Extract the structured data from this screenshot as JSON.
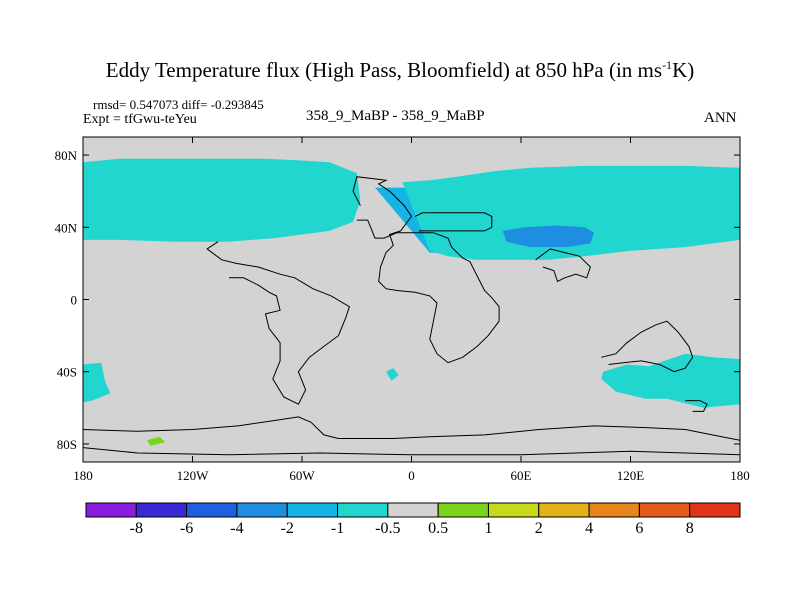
{
  "title": {
    "main": "Eddy Temperature flux (High Pass, Bloomfield) at 850 hPa (in ms",
    "sup": "-1",
    "tail": "K)"
  },
  "stats": "rmsd= 0.547073 diff= -0.293845",
  "expt": "Expt = tfGwu-teYeu",
  "case": "358_9_MaBP - 358_9_MaBP",
  "period": "ANN",
  "chart_data": {
    "type": "heatmap",
    "xlabel": "",
    "ylabel": "",
    "xlim": [
      -180,
      180
    ],
    "ylim": [
      -90,
      90
    ],
    "x_ticks": [
      {
        "value": -180,
        "label": "180"
      },
      {
        "value": -120,
        "label": "120W"
      },
      {
        "value": -60,
        "label": "60W"
      },
      {
        "value": 0,
        "label": "0"
      },
      {
        "value": 60,
        "label": "60E"
      },
      {
        "value": 120,
        "label": "120E"
      },
      {
        "value": 180,
        "label": "180"
      }
    ],
    "y_ticks": [
      {
        "value": 80,
        "label": "80N"
      },
      {
        "value": 40,
        "label": "40N"
      },
      {
        "value": 0,
        "label": "0"
      },
      {
        "value": -40,
        "label": "40S"
      },
      {
        "value": -80,
        "label": "80S"
      }
    ],
    "background_level": "-0.5 to 0.5",
    "background_color": "#d3d3d3",
    "colorbar": {
      "levels": [
        "-8",
        "-6",
        "-4",
        "-2",
        "-1",
        "-0.5",
        "0.5",
        "1",
        "2",
        "4",
        "6",
        "8"
      ],
      "colors": [
        "#8a1ce0",
        "#3a2ad6",
        "#1f60e0",
        "#1e8fe0",
        "#14b4e6",
        "#22d6d0",
        "#d3d3d3",
        "#7ad41a",
        "#c8d81a",
        "#e2b318",
        "#e8851a",
        "#e35a1a",
        "#e0341a"
      ]
    },
    "regions": [
      {
        "level": "-2 to -1",
        "color": "#14b4e6",
        "points": [
          [
            -180,
            69
          ],
          [
            -165,
            70
          ],
          [
            -150,
            71
          ],
          [
            -130,
            72
          ],
          [
            -110,
            72
          ],
          [
            -90,
            72
          ],
          [
            -70,
            71
          ],
          [
            -55,
            68
          ],
          [
            -45,
            62
          ],
          [
            -40,
            50
          ],
          [
            -50,
            42
          ],
          [
            -75,
            37
          ],
          [
            -100,
            36
          ],
          [
            -130,
            36
          ],
          [
            -160,
            37
          ],
          [
            -180,
            37
          ]
        ]
      },
      {
        "level": "-1 to -0.5",
        "color": "#22d6d0",
        "points": [
          [
            -180,
            76
          ],
          [
            -160,
            78
          ],
          [
            -120,
            78
          ],
          [
            -80,
            78
          ],
          [
            -60,
            77
          ],
          [
            -45,
            76
          ],
          [
            -30,
            70
          ],
          [
            -28,
            55
          ],
          [
            -32,
            43
          ],
          [
            -45,
            38
          ],
          [
            -75,
            34
          ],
          [
            -100,
            32
          ],
          [
            -130,
            32
          ],
          [
            -160,
            33
          ],
          [
            -180,
            33
          ]
        ]
      },
      {
        "level": "-2 to -1",
        "color": "#14b4e6",
        "points": [
          [
            -20,
            62
          ],
          [
            0,
            62
          ],
          [
            20,
            63
          ],
          [
            40,
            66
          ],
          [
            65,
            69
          ],
          [
            85,
            72
          ],
          [
            100,
            72
          ],
          [
            125,
            72
          ],
          [
            150,
            72
          ],
          [
            165,
            70
          ],
          [
            180,
            68
          ],
          [
            180,
            38
          ],
          [
            160,
            34
          ],
          [
            130,
            30
          ],
          [
            100,
            29
          ],
          [
            80,
            27
          ],
          [
            50,
            25
          ],
          [
            10,
            26
          ]
        ]
      },
      {
        "level": "-1 to -0.5",
        "color": "#22d6d0",
        "points": [
          [
            -5,
            65
          ],
          [
            10,
            66
          ],
          [
            25,
            68
          ],
          [
            45,
            71
          ],
          [
            65,
            73
          ],
          [
            95,
            74
          ],
          [
            125,
            74
          ],
          [
            150,
            74
          ],
          [
            180,
            73
          ],
          [
            180,
            33
          ],
          [
            150,
            29
          ],
          [
            120,
            27
          ],
          [
            95,
            24
          ],
          [
            75,
            22
          ],
          [
            55,
            22
          ],
          [
            35,
            22
          ],
          [
            20,
            24
          ],
          [
            10,
            27
          ]
        ]
      },
      {
        "level": "-4 to -2",
        "color": "#1e8fe0",
        "points": [
          [
            50,
            38
          ],
          [
            62,
            40
          ],
          [
            80,
            41
          ],
          [
            95,
            40
          ],
          [
            100,
            37
          ],
          [
            98,
            31
          ],
          [
            85,
            29
          ],
          [
            65,
            29
          ],
          [
            52,
            32
          ]
        ]
      },
      {
        "level": "-1 to -0.5",
        "color": "#22d6d0",
        "points": [
          [
            -180,
            -36
          ],
          [
            -170,
            -35
          ],
          [
            -168,
            -45
          ],
          [
            -165,
            -52
          ],
          [
            -175,
            -56
          ],
          [
            -180,
            -57
          ]
        ]
      },
      {
        "level": "-1 to -0.5",
        "color": "#22d6d0",
        "points": [
          [
            105,
            -40
          ],
          [
            118,
            -36
          ],
          [
            130,
            -37
          ],
          [
            150,
            -30
          ],
          [
            165,
            -32
          ],
          [
            180,
            -33
          ],
          [
            180,
            -58
          ],
          [
            160,
            -60
          ],
          [
            140,
            -55
          ],
          [
            128,
            -55
          ],
          [
            112,
            -51
          ],
          [
            104,
            -44
          ]
        ]
      },
      {
        "level": "-1 to -0.5",
        "color": "#22d6d0",
        "points": [
          [
            -14,
            -40
          ],
          [
            -10,
            -38
          ],
          [
            -7,
            -42
          ],
          [
            -11,
            -45
          ]
        ]
      },
      {
        "level": "0.5 to 1",
        "color": "#7ad41a",
        "points": [
          [
            -145,
            -78
          ],
          [
            -138,
            -76
          ],
          [
            -135,
            -79
          ],
          [
            -143,
            -81
          ]
        ]
      }
    ],
    "coastlines": [
      [
        [
          -30,
          44
        ],
        [
          -24,
          44
        ],
        [
          -20,
          34
        ],
        [
          -15,
          34
        ],
        [
          -8,
          37
        ],
        [
          12,
          37
        ],
        [
          20,
          34
        ],
        [
          22,
          29
        ],
        [
          28,
          23
        ],
        [
          32,
          21
        ],
        [
          36,
          13
        ],
        [
          40,
          5
        ],
        [
          44,
          1
        ],
        [
          48,
          -4
        ],
        [
          48,
          -12
        ],
        [
          42,
          -20
        ],
        [
          36,
          -26
        ],
        [
          28,
          -32
        ],
        [
          20,
          -35
        ],
        [
          14,
          -30
        ],
        [
          10,
          -22
        ],
        [
          12,
          -12
        ],
        [
          14,
          -2
        ],
        [
          10,
          2
        ],
        [
          2,
          4
        ],
        [
          -8,
          5
        ],
        [
          -14,
          6
        ],
        [
          -18,
          10
        ],
        [
          -17,
          18
        ],
        [
          -14,
          26
        ],
        [
          -10,
          30
        ],
        [
          -12,
          36
        ],
        [
          -6,
          38
        ],
        [
          0,
          46
        ],
        [
          -4,
          52
        ],
        [
          -8,
          56
        ],
        [
          -12,
          60
        ],
        [
          -18,
          64
        ],
        [
          -14,
          66
        ],
        [
          -30,
          68
        ],
        [
          -32,
          60
        ],
        [
          -28,
          52
        ]
      ],
      [
        [
          -100,
          12
        ],
        [
          -92,
          12
        ],
        [
          -84,
          8
        ],
        [
          -78,
          4
        ],
        [
          -74,
          2
        ],
        [
          -72,
          -6
        ],
        [
          -80,
          -8
        ],
        [
          -78,
          -16
        ],
        [
          -72,
          -24
        ],
        [
          -72,
          -34
        ],
        [
          -76,
          -44
        ],
        [
          -70,
          -54
        ],
        [
          -62,
          -58
        ],
        [
          -58,
          -50
        ],
        [
          -62,
          -40
        ],
        [
          -56,
          -32
        ],
        [
          -48,
          -26
        ],
        [
          -40,
          -20
        ],
        [
          -36,
          -10
        ],
        [
          -34,
          -4
        ],
        [
          -44,
          2
        ],
        [
          -54,
          6
        ],
        [
          -64,
          12
        ],
        [
          -72,
          14
        ],
        [
          -84,
          18
        ],
        [
          -96,
          20
        ],
        [
          -104,
          22
        ],
        [
          -112,
          28
        ],
        [
          -106,
          32
        ]
      ],
      [
        [
          4,
          38
        ],
        [
          10,
          38
        ],
        [
          16,
          38
        ],
        [
          22,
          38
        ],
        [
          28,
          38
        ],
        [
          34,
          38
        ],
        [
          40,
          38
        ],
        [
          44,
          40
        ],
        [
          44,
          46
        ],
        [
          40,
          48
        ],
        [
          34,
          48
        ],
        [
          28,
          48
        ],
        [
          20,
          48
        ],
        [
          12,
          48
        ],
        [
          6,
          48
        ],
        [
          2,
          46
        ]
      ],
      [
        [
          68,
          22
        ],
        [
          76,
          28
        ],
        [
          84,
          26
        ],
        [
          92,
          24
        ],
        [
          98,
          18
        ],
        [
          96,
          12
        ],
        [
          90,
          14
        ],
        [
          84,
          12
        ],
        [
          80,
          10
        ],
        [
          78,
          16
        ],
        [
          72,
          18
        ]
      ],
      [
        [
          104,
          -32
        ],
        [
          112,
          -30
        ],
        [
          118,
          -24
        ],
        [
          126,
          -18
        ],
        [
          134,
          -14
        ],
        [
          140,
          -12
        ],
        [
          146,
          -18
        ],
        [
          152,
          -26
        ],
        [
          154,
          -32
        ],
        [
          150,
          -38
        ],
        [
          144,
          -40
        ],
        [
          136,
          -36
        ],
        [
          126,
          -34
        ],
        [
          116,
          -35
        ],
        [
          108,
          -36
        ]
      ],
      [
        [
          150,
          -56
        ],
        [
          158,
          -56
        ],
        [
          162,
          -58
        ],
        [
          160,
          -62
        ],
        [
          154,
          -62
        ]
      ],
      [
        [
          -180,
          -72
        ],
        [
          -150,
          -73
        ],
        [
          -120,
          -72
        ],
        [
          -95,
          -70
        ],
        [
          -75,
          -67
        ],
        [
          -62,
          -65
        ],
        [
          -55,
          -68
        ],
        [
          -48,
          -75
        ],
        [
          -40,
          -77
        ],
        [
          -10,
          -77
        ],
        [
          10,
          -76
        ],
        [
          40,
          -75
        ],
        [
          70,
          -72
        ],
        [
          100,
          -70
        ],
        [
          130,
          -71
        ],
        [
          150,
          -72
        ],
        [
          170,
          -76
        ],
        [
          180,
          -78
        ]
      ],
      [
        [
          -180,
          -82
        ],
        [
          -150,
          -85
        ],
        [
          -100,
          -86
        ],
        [
          -50,
          -85
        ],
        [
          0,
          -86
        ],
        [
          60,
          -86
        ],
        [
          120,
          -84
        ],
        [
          180,
          -86
        ]
      ]
    ],
    "colorbar_labels": [
      "-8",
      "-6",
      "-4",
      "-2",
      "-1",
      "-0.5",
      "0.5",
      "1",
      "2",
      "4",
      "6",
      "8"
    ]
  }
}
